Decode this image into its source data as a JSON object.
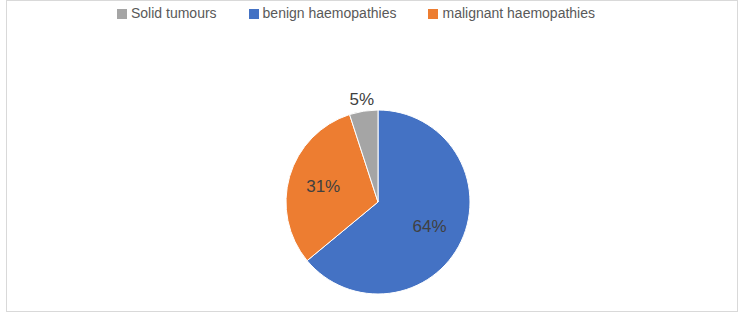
{
  "chart_data": {
    "type": "pie",
    "categories": [
      "benign haemopathies",
      "malignant haemopathies",
      "Solid tumours"
    ],
    "values": [
      64,
      31,
      5
    ],
    "value_labels": [
      "64%",
      "31%",
      "5%"
    ],
    "colors": [
      "#4472c4",
      "#ed7d31",
      "#a5a5a5"
    ],
    "legend": "top",
    "data_labels": true
  }
}
